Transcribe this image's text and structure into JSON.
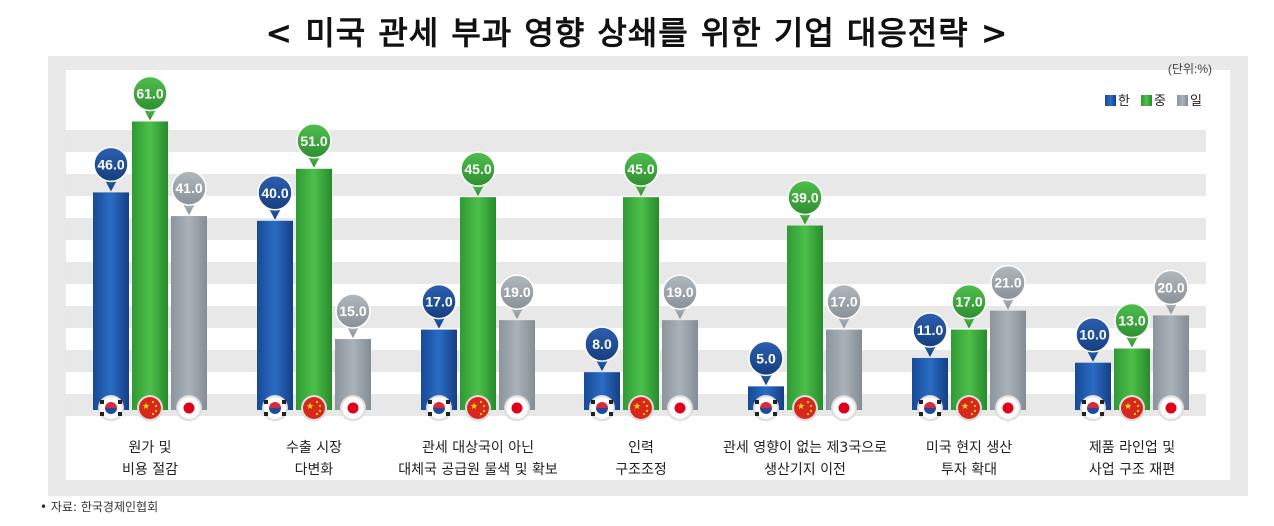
{
  "title": "< 미국 관세 부과 영향 상쇄를 위한 기업 대응전략 >",
  "unit_label": "(단위:%)",
  "source_label": "• 자료: 한국경제인협회",
  "colors": {
    "korea": "#1f56a8",
    "china": "#3aa83a",
    "japan": "#9aa3ab"
  },
  "chart_data": {
    "type": "bar",
    "title": "< 미국 관세 부과 영향 상쇄를 위한 기업 대응전략 >",
    "unit": "(단위:%)",
    "legend_position": "top-right",
    "grid": true,
    "ylim": [
      0,
      70
    ],
    "categories": [
      [
        "원가 및",
        "비용 절감"
      ],
      [
        "수출 시장",
        "다변화"
      ],
      [
        "관세 대상국이 아닌",
        "대체국 공급원 물색 및 확보"
      ],
      [
        "인력",
        "구조조정"
      ],
      [
        "관세 영향이 없는 제3국으로",
        "생산기지 이전"
      ],
      [
        "미국 현지 생산",
        "투자 확대"
      ],
      [
        "제품 라인업 및",
        "사업 구조 재편"
      ]
    ],
    "series": [
      {
        "name": "한",
        "color": "#1f56a8",
        "values": [
          46.0,
          40.0,
          17.0,
          8.0,
          5.0,
          11.0,
          10.0
        ],
        "labels": [
          "46.0",
          "40.0",
          "17.0",
          "8.0",
          "5.0",
          "11.0",
          "10.0"
        ]
      },
      {
        "name": "중",
        "color": "#3aa83a",
        "values": [
          61.0,
          51.0,
          45.0,
          45.0,
          39.0,
          17.0,
          13.0
        ],
        "labels": [
          "61.0",
          "51.0",
          "45.0",
          "45.0",
          "39.0",
          "17.0",
          "13.0"
        ]
      },
      {
        "name": "일",
        "color": "#9aa3ab",
        "values": [
          41.0,
          15.0,
          19.0,
          19.0,
          17.0,
          21.0,
          20.0
        ],
        "labels": [
          "41.0",
          "15.0",
          "19.0",
          "19.0",
          "17.0",
          "21.0",
          "20.0"
        ]
      }
    ],
    "flag_icons": [
      "korea-flag-icon",
      "china-flag-icon",
      "japan-flag-icon"
    ]
  }
}
